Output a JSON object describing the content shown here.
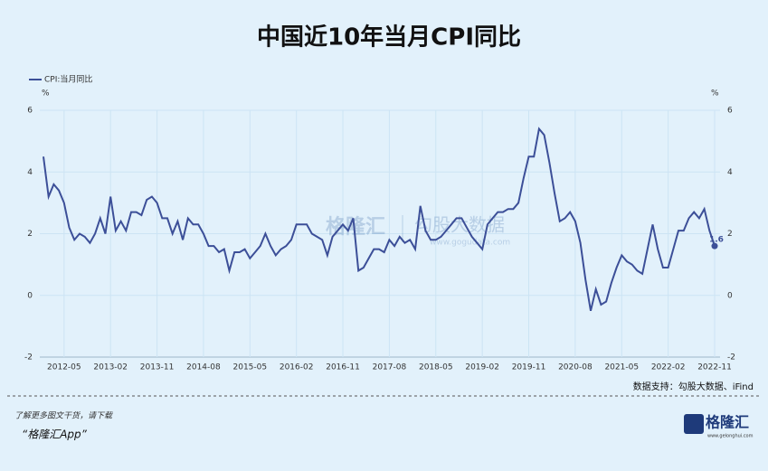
{
  "chart_data": {
    "type": "line",
    "title": "中国近10年当月CPI同比",
    "categories": [
      null,
      null,
      null,
      null,
      "2012-05",
      null,
      null,
      null,
      null,
      null,
      null,
      null,
      null,
      "2013-02",
      null,
      null,
      null,
      null,
      null,
      null,
      null,
      null,
      "2013-11",
      null,
      null,
      null,
      null,
      null,
      null,
      null,
      null,
      "2014-08",
      null,
      null,
      null,
      null,
      null,
      null,
      null,
      null,
      "2015-05",
      null,
      null,
      null,
      null,
      null,
      null,
      null,
      null,
      "2016-02",
      null,
      null,
      null,
      null,
      null,
      null,
      null,
      null,
      "2016-11",
      null,
      null,
      null,
      null,
      null,
      null,
      null,
      null,
      "2017-08",
      null,
      null,
      null,
      null,
      null,
      null,
      null,
      null,
      "2018-05",
      null,
      null,
      null,
      null,
      null,
      null,
      null,
      null,
      "2019-02",
      null,
      null,
      null,
      null,
      null,
      null,
      null,
      null,
      "2019-11",
      null,
      null,
      null,
      null,
      null,
      null,
      null,
      null,
      "2020-08",
      null,
      null,
      null,
      null,
      null,
      null,
      null,
      null,
      "2021-05",
      null,
      null,
      null,
      null,
      null,
      null,
      null,
      null,
      "2022-02",
      null,
      null,
      null,
      null,
      null,
      null,
      null,
      null,
      "2022-11"
    ],
    "series": [
      {
        "name": "CPI:当月同比",
        "color": "#3c4f98",
        "values": [
          4.5,
          3.2,
          3.6,
          3.4,
          3.0,
          2.2,
          1.8,
          2.0,
          1.9,
          1.7,
          2.0,
          2.5,
          2.0,
          3.2,
          2.1,
          2.4,
          2.1,
          2.7,
          2.7,
          2.6,
          3.1,
          3.2,
          3.0,
          2.5,
          2.5,
          2.0,
          2.4,
          1.8,
          2.5,
          2.3,
          2.3,
          2.0,
          1.6,
          1.6,
          1.4,
          1.5,
          0.8,
          1.4,
          1.4,
          1.5,
          1.2,
          1.4,
          1.6,
          2.0,
          1.6,
          1.3,
          1.5,
          1.6,
          1.8,
          2.3,
          2.3,
          2.3,
          2.0,
          1.9,
          1.8,
          1.3,
          1.9,
          2.1,
          2.3,
          2.1,
          2.5,
          0.8,
          0.9,
          1.2,
          1.5,
          1.5,
          1.4,
          1.8,
          1.6,
          1.9,
          1.7,
          1.8,
          1.5,
          2.9,
          2.1,
          1.8,
          1.8,
          1.9,
          2.1,
          2.3,
          2.5,
          2.5,
          2.2,
          1.9,
          1.7,
          1.5,
          2.3,
          2.5,
          2.7,
          2.7,
          2.8,
          2.8,
          3.0,
          3.8,
          4.5,
          4.5,
          5.4,
          5.2,
          4.3,
          3.3,
          2.4,
          2.5,
          2.7,
          2.4,
          1.7,
          0.5,
          -0.5,
          0.2,
          -0.3,
          -0.2,
          0.4,
          0.9,
          1.3,
          1.1,
          1.0,
          0.8,
          0.7,
          1.5,
          2.3,
          1.5,
          0.9,
          0.9,
          1.5,
          2.1,
          2.1,
          2.5,
          2.7,
          2.5,
          2.8,
          2.1,
          1.6
        ]
      }
    ],
    "y_unit": "%",
    "ylim": [
      -2,
      6
    ],
    "yticks": [
      -2,
      0,
      2,
      4,
      6
    ],
    "grid": true,
    "source": "数据支持：勾股大数据、iFind",
    "watermark": [
      "格隆汇",
      "勾股大数据",
      "www.gogudata.com"
    ]
  },
  "footer": {
    "prompt": "了解更多图文干货，请下载",
    "app": "“格隆汇App”",
    "logo": "格隆汇",
    "url": "www.gelonghui.com"
  }
}
